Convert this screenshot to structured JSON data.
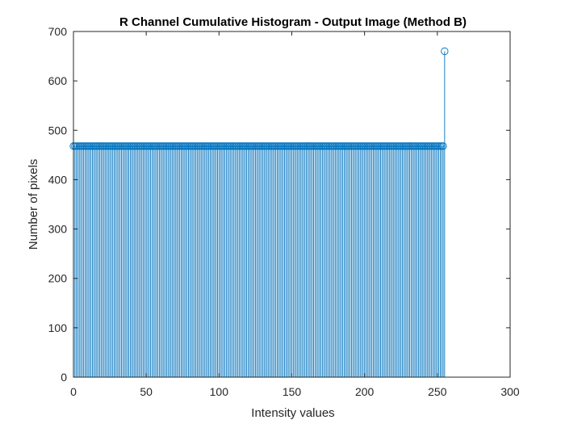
{
  "chart_data": {
    "type": "stem",
    "title": "R Channel Cumulative Histogram - Output Image (Method B)",
    "xlabel": "Intensity values",
    "ylabel": "Number of pixels",
    "xlim": [
      0,
      300
    ],
    "ylim": [
      0,
      700
    ],
    "xticks": [
      "0",
      "50",
      "100",
      "150",
      "200",
      "250",
      "300"
    ],
    "yticks": [
      "0",
      "100",
      "200",
      "300",
      "400",
      "500",
      "600",
      "700"
    ],
    "grid": false,
    "series": [
      {
        "x_start": 0,
        "x_end": 254,
        "value": 468,
        "last_point": {
          "x": 255,
          "y": 660
        }
      }
    ],
    "colors": {
      "series": "#0072BD",
      "axes": "#262626",
      "background": "#ffffff"
    }
  }
}
